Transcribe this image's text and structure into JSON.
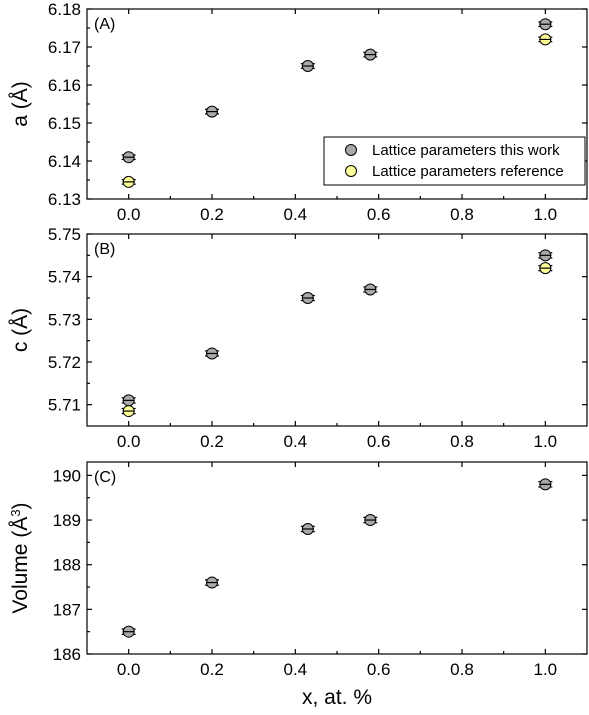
{
  "chart_data": [
    {
      "type": "scatter",
      "panel_label": "(A)",
      "ylabel": "a (Å)",
      "ylim": [
        6.13,
        6.18
      ],
      "yticks": [
        "6.13",
        "6.14",
        "6.15",
        "6.16",
        "6.17",
        "6.18"
      ],
      "xlim": [
        -0.1,
        1.1
      ],
      "xticks": [
        "0.0",
        "0.2",
        "0.4",
        "0.6",
        "0.8",
        "1.0"
      ],
      "legend": {
        "placement": "lower-right",
        "entries": [
          "Lattice parameters this work",
          "Lattice parameters reference"
        ]
      },
      "series": [
        {
          "name": "Lattice parameters this work",
          "color": "#a9a9a9",
          "points": [
            {
              "x": 0.0,
              "y": 6.141,
              "err": 0.0006
            },
            {
              "x": 0.2,
              "y": 6.153,
              "err": 0.0006
            },
            {
              "x": 0.43,
              "y": 6.165,
              "err": 0.0006
            },
            {
              "x": 0.58,
              "y": 6.168,
              "err": 0.0006
            },
            {
              "x": 1.0,
              "y": 6.176,
              "err": 0.0006
            }
          ]
        },
        {
          "name": "Lattice parameters reference",
          "color": "#ffff99",
          "points": [
            {
              "x": 0.0,
              "y": 6.1345,
              "err": 0.0006
            },
            {
              "x": 1.0,
              "y": 6.172,
              "err": 0.0006
            }
          ]
        }
      ]
    },
    {
      "type": "scatter",
      "panel_label": "(B)",
      "ylabel": "c (Å)",
      "ylim": [
        5.705,
        5.75
      ],
      "yticks": [
        "5.71",
        "5.72",
        "5.73",
        "5.74",
        "5.75"
      ],
      "xlim": [
        -0.1,
        1.1
      ],
      "xticks": [
        "0.0",
        "0.2",
        "0.4",
        "0.6",
        "0.8",
        "1.0"
      ],
      "series": [
        {
          "name": "Lattice parameters this work",
          "color": "#a9a9a9",
          "points": [
            {
              "x": 0.0,
              "y": 5.711,
              "err": 0.0006
            },
            {
              "x": 0.2,
              "y": 5.722,
              "err": 0.0006
            },
            {
              "x": 0.43,
              "y": 5.735,
              "err": 0.0006
            },
            {
              "x": 0.58,
              "y": 5.737,
              "err": 0.0006
            },
            {
              "x": 1.0,
              "y": 5.745,
              "err": 0.0006
            }
          ]
        },
        {
          "name": "Lattice parameters reference",
          "color": "#ffff99",
          "points": [
            {
              "x": 0.0,
              "y": 5.7085,
              "err": 0.0006
            },
            {
              "x": 1.0,
              "y": 5.742,
              "err": 0.0006
            }
          ]
        }
      ]
    },
    {
      "type": "scatter",
      "panel_label": "(C)",
      "ylabel": "Volume (Å",
      "ylabel_superscript": "3",
      "ylabel_suffix": ")",
      "ylim": [
        186,
        190.3
      ],
      "yticks": [
        "186",
        "187",
        "188",
        "189",
        "190"
      ],
      "xlim": [
        -0.1,
        1.1
      ],
      "xticks": [
        "0.0",
        "0.2",
        "0.4",
        "0.6",
        "0.8",
        "1.0"
      ],
      "xlabel": "x, at. %",
      "series": [
        {
          "name": "Lattice parameters this work",
          "color": "#a9a9a9",
          "points": [
            {
              "x": 0.0,
              "y": 186.5,
              "err": 0.06
            },
            {
              "x": 0.2,
              "y": 187.6,
              "err": 0.06
            },
            {
              "x": 0.43,
              "y": 188.8,
              "err": 0.06
            },
            {
              "x": 0.58,
              "y": 189.0,
              "err": 0.06
            },
            {
              "x": 1.0,
              "y": 189.8,
              "err": 0.06
            }
          ]
        }
      ]
    }
  ]
}
